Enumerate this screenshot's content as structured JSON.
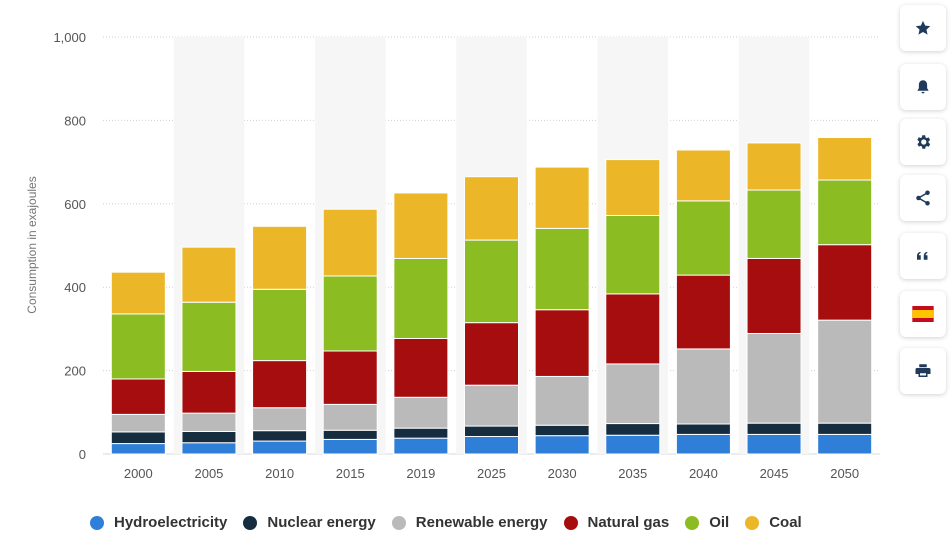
{
  "chart_data": {
    "type": "bar",
    "stacked": true,
    "categories": [
      "2000",
      "2005",
      "2010",
      "2015",
      "2019",
      "2025",
      "2030",
      "2035",
      "2040",
      "2045",
      "2050"
    ],
    "ylabel": "Consumption in exajoules",
    "ylim": [
      0,
      1000
    ],
    "yticks": [
      "0",
      "200",
      "400",
      "600",
      "800",
      "1,000"
    ],
    "grid": true,
    "legend_position": "bottom",
    "series": [
      {
        "name": "Hydroelectricity",
        "color": "#2f7ed8",
        "values": [
          25,
          27,
          31,
          35,
          38,
          42,
          44,
          45,
          47,
          47,
          47
        ]
      },
      {
        "name": "Nuclear energy",
        "color": "#162c3f",
        "values": [
          28,
          27,
          25,
          22,
          24,
          25,
          25,
          28,
          25,
          27,
          27
        ]
      },
      {
        "name": "Renewable energy",
        "color": "#bababa",
        "values": [
          42,
          44,
          55,
          62,
          74,
          98,
          117,
          143,
          180,
          215,
          247
        ]
      },
      {
        "name": "Natural gas",
        "color": "#a60d0e",
        "values": [
          85,
          100,
          113,
          128,
          141,
          150,
          160,
          168,
          177,
          180,
          181
        ]
      },
      {
        "name": "Oil",
        "color": "#8bbc21",
        "values": [
          156,
          166,
          171,
          180,
          192,
          198,
          195,
          188,
          178,
          164,
          155
        ]
      },
      {
        "name": "Coal",
        "color": "#ebb627",
        "values": [
          100,
          132,
          151,
          160,
          157,
          152,
          147,
          134,
          122,
          113,
          102
        ]
      }
    ]
  },
  "toolbar": {
    "buttons": [
      {
        "name": "favorite-button",
        "icon": "star-icon"
      },
      {
        "name": "notification-button",
        "icon": "bell-icon"
      },
      {
        "name": "settings-button",
        "icon": "gear-icon"
      },
      {
        "name": "share-button",
        "icon": "share-icon"
      },
      {
        "name": "cite-button",
        "icon": "quote-icon"
      },
      {
        "name": "language-button",
        "icon": "spain-flag-icon"
      },
      {
        "name": "print-button",
        "icon": "printer-icon"
      }
    ]
  }
}
